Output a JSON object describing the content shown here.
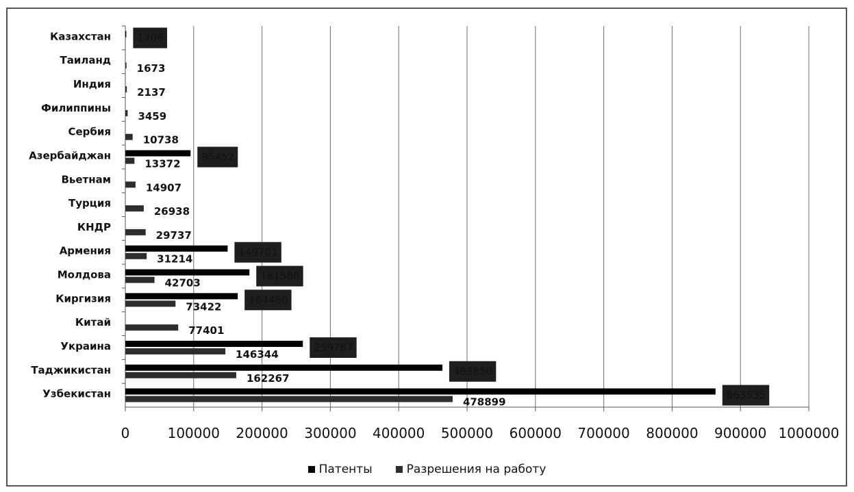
{
  "chart_data": {
    "type": "bar",
    "orientation": "horizontal",
    "categories": [
      "Казахстан",
      "Таиланд",
      "Индия",
      "Филиппины",
      "Сербия",
      "Азербайджан",
      "Вьетнам",
      "Турция",
      "КНДР",
      "Армения",
      "Молдова",
      "Киргизия",
      "Китай",
      "Украина",
      "Таджикистан",
      "Узбекистан"
    ],
    "series": [
      {
        "name": "Патенты",
        "color": "#000000",
        "values": [
          1406,
          null,
          null,
          null,
          null,
          95452,
          null,
          null,
          null,
          149701,
          181580,
          164480,
          null,
          259767,
          463850,
          863535
        ]
      },
      {
        "name": "Разрешения на работу",
        "color": "#2e2e2e",
        "values": [
          null,
          1673,
          2137,
          3459,
          10738,
          13372,
          14907,
          26938,
          29737,
          31214,
          42703,
          73422,
          77401,
          146344,
          162267,
          478899
        ]
      }
    ],
    "xlim": [
      0,
      1000000
    ],
    "xticks": [
      0,
      100000,
      200000,
      300000,
      400000,
      500000,
      600000,
      700000,
      800000,
      900000,
      1000000
    ],
    "grid": true,
    "legend_position": "bottom",
    "title": "",
    "xlabel": "",
    "ylabel": ""
  }
}
